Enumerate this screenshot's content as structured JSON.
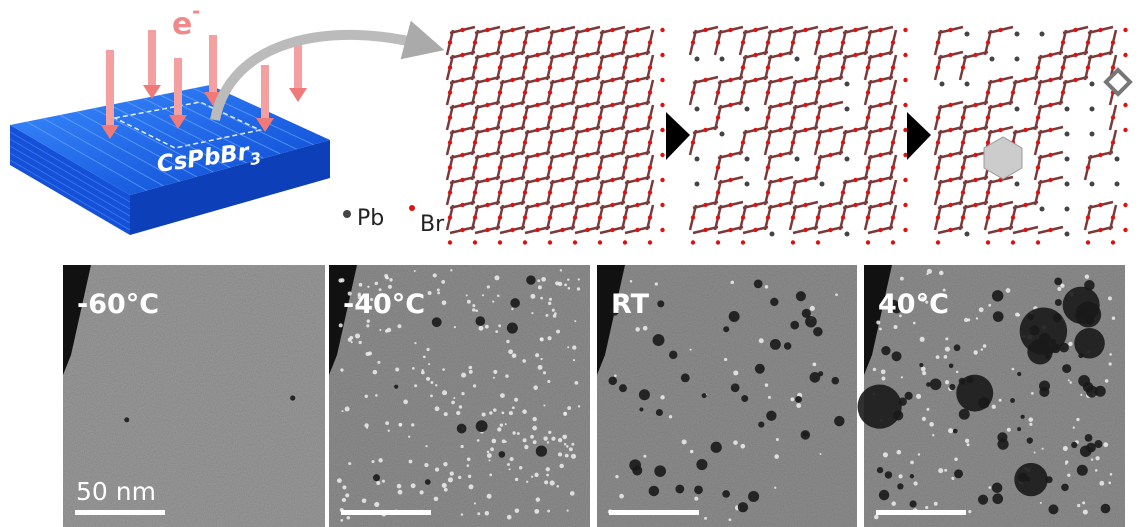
{
  "schematic": {
    "electron_symbol": "e",
    "electron_charge": "-",
    "crystal_formula": {
      "base": "CsPbBr",
      "subscript": "3"
    },
    "legend": [
      {
        "label": "Pb",
        "color": "#444444"
      },
      {
        "label": "Br",
        "color": "#e01010"
      }
    ]
  },
  "micrographs": [
    {
      "label": "-60°C"
    },
    {
      "label": "-40°C"
    },
    {
      "label": "RT"
    },
    {
      "label": "40°C"
    }
  ],
  "scale_bar": {
    "label": "50 nm"
  }
}
